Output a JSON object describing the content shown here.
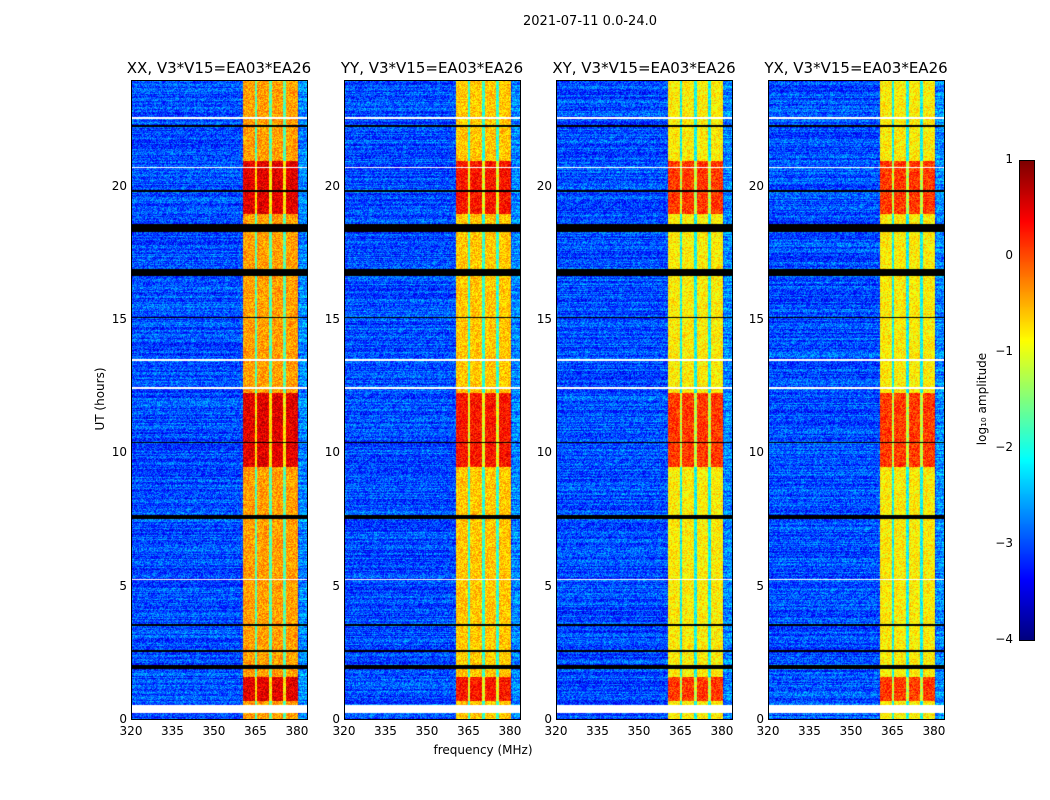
{
  "chart_data": {
    "type": "heatmap",
    "title": "2021-07-11 0.0-24.0",
    "xlabel": "frequency (MHz)",
    "ylabel": "UT (hours)",
    "xlim": [
      320,
      384
    ],
    "ylim": [
      0,
      24
    ],
    "xticks": [
      "320",
      "335",
      "350",
      "365",
      "380"
    ],
    "yticks": [
      "0",
      "5",
      "10",
      "15",
      "20"
    ],
    "panels": [
      {
        "title": "XX, V3*V15=EA03*EA26",
        "band_level": -0.4
      },
      {
        "title": "YY, V3*V15=EA03*EA26",
        "band_level": -0.6
      },
      {
        "title": "XY, V3*V15=EA03*EA26",
        "band_level": -0.8
      },
      {
        "title": "YX, V3*V15=EA03*EA26",
        "band_level": -0.8
      }
    ],
    "rfi_band_mhz": [
      360.5,
      380.5
    ],
    "band_gaps_mhz": [
      365.2,
      370.5,
      375.5
    ],
    "background_log10_amplitude": -3,
    "bright_intervals_hours": [
      [
        0.7,
        1.6
      ],
      [
        9.5,
        12.3
      ],
      [
        19.0,
        21.0
      ]
    ],
    "flagged_intervals_hours": [
      [
        0.26,
        0.55
      ],
      [
        16.7,
        16.95
      ],
      [
        18.35,
        18.65
      ],
      [
        12.45,
        12.52
      ],
      [
        10.4,
        10.45
      ],
      [
        7.55,
        7.7
      ],
      [
        5.25,
        5.3
      ],
      [
        1.9,
        2.05
      ],
      [
        2.55,
        2.62
      ],
      [
        20.75,
        20.8
      ],
      [
        19.85,
        19.9
      ],
      [
        15.1,
        15.15
      ],
      [
        13.5,
        13.55
      ],
      [
        3.5,
        3.6
      ],
      [
        22.3,
        22.35
      ],
      [
        22.6,
        22.65
      ]
    ],
    "colorbar": {
      "label": "log₁₀ amplitude",
      "range": [
        -4,
        1
      ],
      "ticks": [
        "1",
        "0",
        "−1",
        "−2",
        "−3",
        "−4"
      ]
    }
  }
}
